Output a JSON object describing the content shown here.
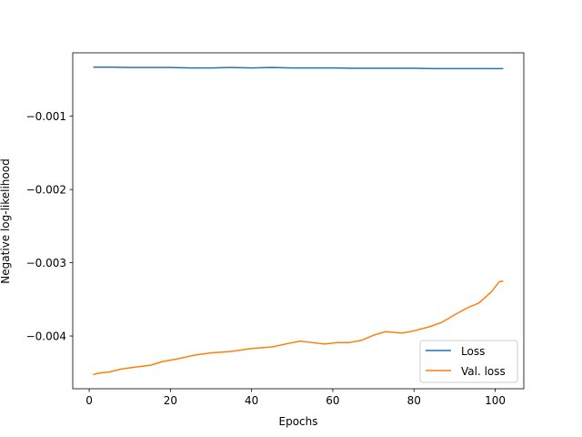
{
  "chart_data": {
    "type": "line",
    "title": "",
    "xlabel": "Epochs",
    "ylabel": "Negative log-likelihood",
    "xlim": [
      -4.05,
      107.05
    ],
    "ylim": [
      -0.00472,
      -0.000134
    ],
    "xticks": [
      0,
      20,
      40,
      60,
      80,
      100
    ],
    "xtick_labels": [
      "0",
      "20",
      "40",
      "60",
      "80",
      "100"
    ],
    "yticks": [
      -0.001,
      -0.002,
      -0.003,
      -0.004
    ],
    "ytick_labels": [
      "−0.001",
      "−0.002",
      "−0.003",
      "−0.004"
    ],
    "grid": false,
    "legend_position": "lower-right",
    "series": [
      {
        "name": "Loss",
        "color": "#1f77b4",
        "x": [
          1,
          5,
          10,
          15,
          20,
          25,
          30,
          35,
          40,
          45,
          50,
          55,
          60,
          65,
          70,
          75,
          80,
          85,
          90,
          95,
          100,
          102
        ],
        "y": [
          -0.00033,
          -0.00033,
          -0.000335,
          -0.000335,
          -0.000335,
          -0.00034,
          -0.00034,
          -0.000335,
          -0.00034,
          -0.000335,
          -0.00034,
          -0.00034,
          -0.00034,
          -0.000345,
          -0.000345,
          -0.000345,
          -0.000345,
          -0.00035,
          -0.00035,
          -0.00035,
          -0.00035,
          -0.00035
        ]
      },
      {
        "name": "Val. loss",
        "color": "#ff7f0e",
        "x": [
          1,
          2,
          5,
          8,
          12,
          15,
          18,
          22,
          26,
          30,
          35,
          40,
          45,
          50,
          52,
          55,
          58,
          61,
          64,
          67,
          70,
          73,
          77,
          80,
          84,
          87,
          90,
          93,
          96,
          99,
          101,
          102
        ],
        "y": [
          -0.00453,
          -0.00451,
          -0.00449,
          -0.00445,
          -0.00442,
          -0.0044,
          -0.00435,
          -0.00431,
          -0.00426,
          -0.00423,
          -0.00421,
          -0.00417,
          -0.00415,
          -0.00409,
          -0.00407,
          -0.00409,
          -0.00411,
          -0.00409,
          -0.00409,
          -0.00406,
          -0.00399,
          -0.00394,
          -0.00396,
          -0.00393,
          -0.00387,
          -0.00381,
          -0.00371,
          -0.00362,
          -0.00355,
          -0.0034,
          -0.00326,
          -0.00325
        ]
      }
    ]
  }
}
